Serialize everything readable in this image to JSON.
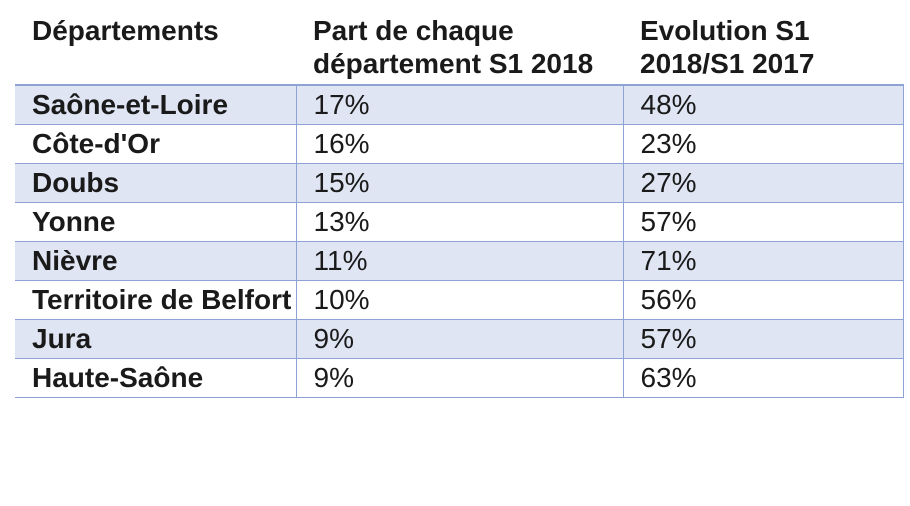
{
  "table": {
    "headers": {
      "col1": "Départements",
      "col2": "Part de chaque département S1 2018",
      "col3": "Evolution S1 2018/S1 2017"
    },
    "rows": [
      {
        "departement": "Saône-et-Loire",
        "part": "17%",
        "evolution": "48%"
      },
      {
        "departement": "Côte-d'Or",
        "part": "16%",
        "evolution": "23%"
      },
      {
        "departement": "Doubs",
        "part": "15%",
        "evolution": "27%"
      },
      {
        "departement": "Yonne",
        "part": "13%",
        "evolution": "57%"
      },
      {
        "departement": "Nièvre",
        "part": "11%",
        "evolution": "71%"
      },
      {
        "departement": "Territoire de Belfort",
        "part": "10%",
        "evolution": "56%"
      },
      {
        "departement": "Jura",
        "part": "9%",
        "evolution": "57%"
      },
      {
        "departement": "Haute-Saône",
        "part": "9%",
        "evolution": "63%"
      }
    ],
    "colors": {
      "row_shade": "#dfe5f3",
      "border": "#8ea2d4"
    }
  }
}
